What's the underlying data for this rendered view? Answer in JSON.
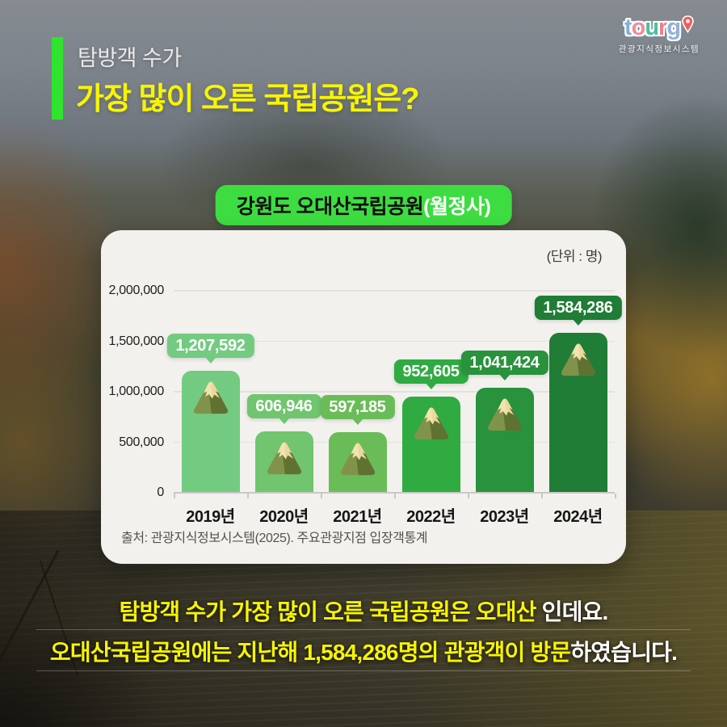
{
  "header": {
    "eyebrow": "탐방객 수가",
    "title": "가장 많이 오른 국립공원은?",
    "accent_color": "#2ee42e",
    "title_color": "#f8f402"
  },
  "logo": {
    "letters": [
      {
        "char": "t",
        "color": "#7fb0d8"
      },
      {
        "char": "o",
        "color": "#ef8d9b"
      },
      {
        "char": "u",
        "color": "#49c0a0"
      },
      {
        "char": "r",
        "color": "#f08089"
      },
      {
        "char": "g",
        "color": "#8fb3da"
      }
    ],
    "pin_color": "#f25c5c",
    "subtext": "관광지식정보시스템"
  },
  "badge": {
    "text_black": "강원도 오대산국립공원",
    "text_white": "(월정사)",
    "bg": "#3ddc41"
  },
  "chart_card": {
    "unit_label": "(단위 : 명)",
    "source": "출처: 관광지식정보시스템(2025). 주요관광지점 입장객통계"
  },
  "chart_data": {
    "type": "bar",
    "title": "강원도 오대산국립공원(월정사) 연도별 탐방객 수",
    "categories": [
      "2019년",
      "2020년",
      "2021년",
      "2022년",
      "2023년",
      "2024년"
    ],
    "values": [
      1207592,
      606946,
      597185,
      952605,
      1041424,
      1584286
    ],
    "data_labels": [
      "1,207,592",
      "606,946",
      "597,185",
      "952,605",
      "1,041,424",
      "1,584,286"
    ],
    "bar_colors": [
      "#73cb81",
      "#70c56e",
      "#6abc59",
      "#2fab42",
      "#28923c",
      "#1f7d35"
    ],
    "xlabel": "",
    "ylabel": "명",
    "ylim": [
      0,
      2000000
    ],
    "yticks": [
      0,
      500000,
      1000000,
      1500000,
      2000000
    ],
    "ytick_labels": [
      "0",
      "500,000",
      "1,000,000",
      "1,500,000",
      "2,000,000"
    ],
    "grid": true,
    "legend": false
  },
  "caption": {
    "line1_highlight": "탐방객 수가 가장 많이 오른 국립공원은 오대산",
    "line1_normal": " 인데요.",
    "line2_highlight": "오대산국립공원에는 지난해 1,584,286명의 관광객이 방문",
    "line2_normal": "하였습니다.",
    "highlight_color": "#f8f402"
  }
}
